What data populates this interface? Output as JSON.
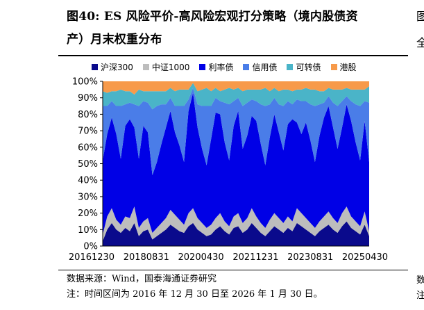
{
  "figure": {
    "number": "图40:",
    "title_line1": "ES 风险平价-高风险宏观打分策略（境内股债资",
    "title_line2": "产）月末权重分布",
    "source": "数据来源：Wind，国泰海通证券研究",
    "note": "注：时间区间为 2016 年 12 月 30 日至 2026 年 1 月 30 日。",
    "right_fragments": [
      "图",
      "全",
      "数",
      "注"
    ]
  },
  "chart_data": {
    "type": "area",
    "stacked": true,
    "normalized": true,
    "title": "",
    "xlabel": "",
    "ylabel": "",
    "ylim": [
      0,
      100
    ],
    "yticks": [
      "0%",
      "10%",
      "20%",
      "30%",
      "40%",
      "50%",
      "60%",
      "70%",
      "80%",
      "90%",
      "100%"
    ],
    "xticks": [
      "20161230",
      "20180831",
      "20200430",
      "20211231",
      "20230831",
      "20250430"
    ],
    "legend_position": "top",
    "grid": false,
    "series": [
      {
        "name": "沪深300",
        "color": "#0a0a8c",
        "values": [
          3,
          10,
          14,
          10,
          8,
          11,
          9,
          14,
          6,
          9,
          10,
          4,
          6,
          8,
          10,
          13,
          11,
          9,
          8,
          12,
          14,
          10,
          8,
          6,
          7,
          10,
          12,
          9,
          7,
          11,
          12,
          8,
          10,
          14,
          11,
          8,
          6,
          9,
          12,
          10,
          8,
          11,
          9,
          14,
          12,
          10,
          8,
          6,
          9,
          11,
          13,
          10,
          8,
          12,
          15,
          11,
          9,
          7,
          13,
          6
        ]
      },
      {
        "name": "中证1000",
        "color": "#bdbdbd",
        "values": [
          4,
          8,
          9,
          6,
          5,
          7,
          8,
          10,
          5,
          6,
          7,
          4,
          5,
          6,
          7,
          9,
          8,
          7,
          5,
          8,
          9,
          7,
          6,
          5,
          6,
          7,
          8,
          6,
          5,
          7,
          8,
          6,
          7,
          9,
          7,
          6,
          5,
          7,
          8,
          7,
          6,
          7,
          6,
          9,
          8,
          7,
          6,
          5,
          6,
          7,
          8,
          7,
          6,
          8,
          9,
          7,
          6,
          5,
          8,
          3
        ]
      },
      {
        "name": "利率债",
        "color": "#0000e6",
        "values": [
          45,
          50,
          55,
          52,
          40,
          55,
          60,
          48,
          42,
          58,
          52,
          35,
          40,
          48,
          55,
          60,
          50,
          45,
          38,
          62,
          70,
          55,
          45,
          38,
          52,
          64,
          60,
          48,
          40,
          55,
          62,
          45,
          50,
          56,
          58,
          48,
          38,
          50,
          60,
          52,
          44,
          56,
          62,
          52,
          48,
          58,
          50,
          40,
          52,
          60,
          64,
          55,
          45,
          52,
          62,
          58,
          48,
          40,
          55,
          42
        ]
      },
      {
        "name": "信用债",
        "color": "#4a7de8",
        "values": [
          33,
          17,
          10,
          17,
          32,
          13,
          10,
          14,
          32,
          15,
          18,
          40,
          34,
          24,
          14,
          8,
          16,
          24,
          34,
          7,
          3,
          14,
          26,
          36,
          20,
          9,
          8,
          24,
          34,
          15,
          8,
          26,
          20,
          10,
          12,
          24,
          36,
          20,
          10,
          17,
          27,
          14,
          9,
          14,
          20,
          13,
          22,
          34,
          19,
          9,
          6,
          15,
          26,
          16,
          5,
          12,
          23,
          33,
          12,
          36
        ]
      },
      {
        "name": "可转债",
        "color": "#4ab4c8",
        "values": [
          9,
          8,
          6,
          9,
          10,
          8,
          7,
          6,
          10,
          6,
          7,
          11,
          9,
          8,
          8,
          6,
          9,
          10,
          10,
          6,
          3,
          8,
          10,
          11,
          9,
          6,
          6,
          8,
          10,
          7,
          6,
          9,
          8,
          6,
          7,
          9,
          11,
          8,
          6,
          8,
          10,
          7,
          8,
          6,
          7,
          8,
          9,
          10,
          8,
          7,
          5,
          8,
          10,
          7,
          5,
          7,
          9,
          10,
          7,
          10
        ]
      },
      {
        "name": "港股",
        "color": "#f79a4a",
        "values": [
          6,
          7,
          6,
          6,
          5,
          6,
          6,
          8,
          5,
          6,
          6,
          6,
          6,
          6,
          6,
          4,
          6,
          5,
          5,
          5,
          1,
          6,
          5,
          4,
          6,
          4,
          6,
          5,
          4,
          5,
          4,
          6,
          5,
          5,
          5,
          5,
          4,
          6,
          4,
          6,
          5,
          5,
          6,
          5,
          5,
          4,
          5,
          5,
          6,
          6,
          4,
          5,
          5,
          5,
          4,
          5,
          5,
          5,
          5,
          3
        ]
      }
    ]
  }
}
